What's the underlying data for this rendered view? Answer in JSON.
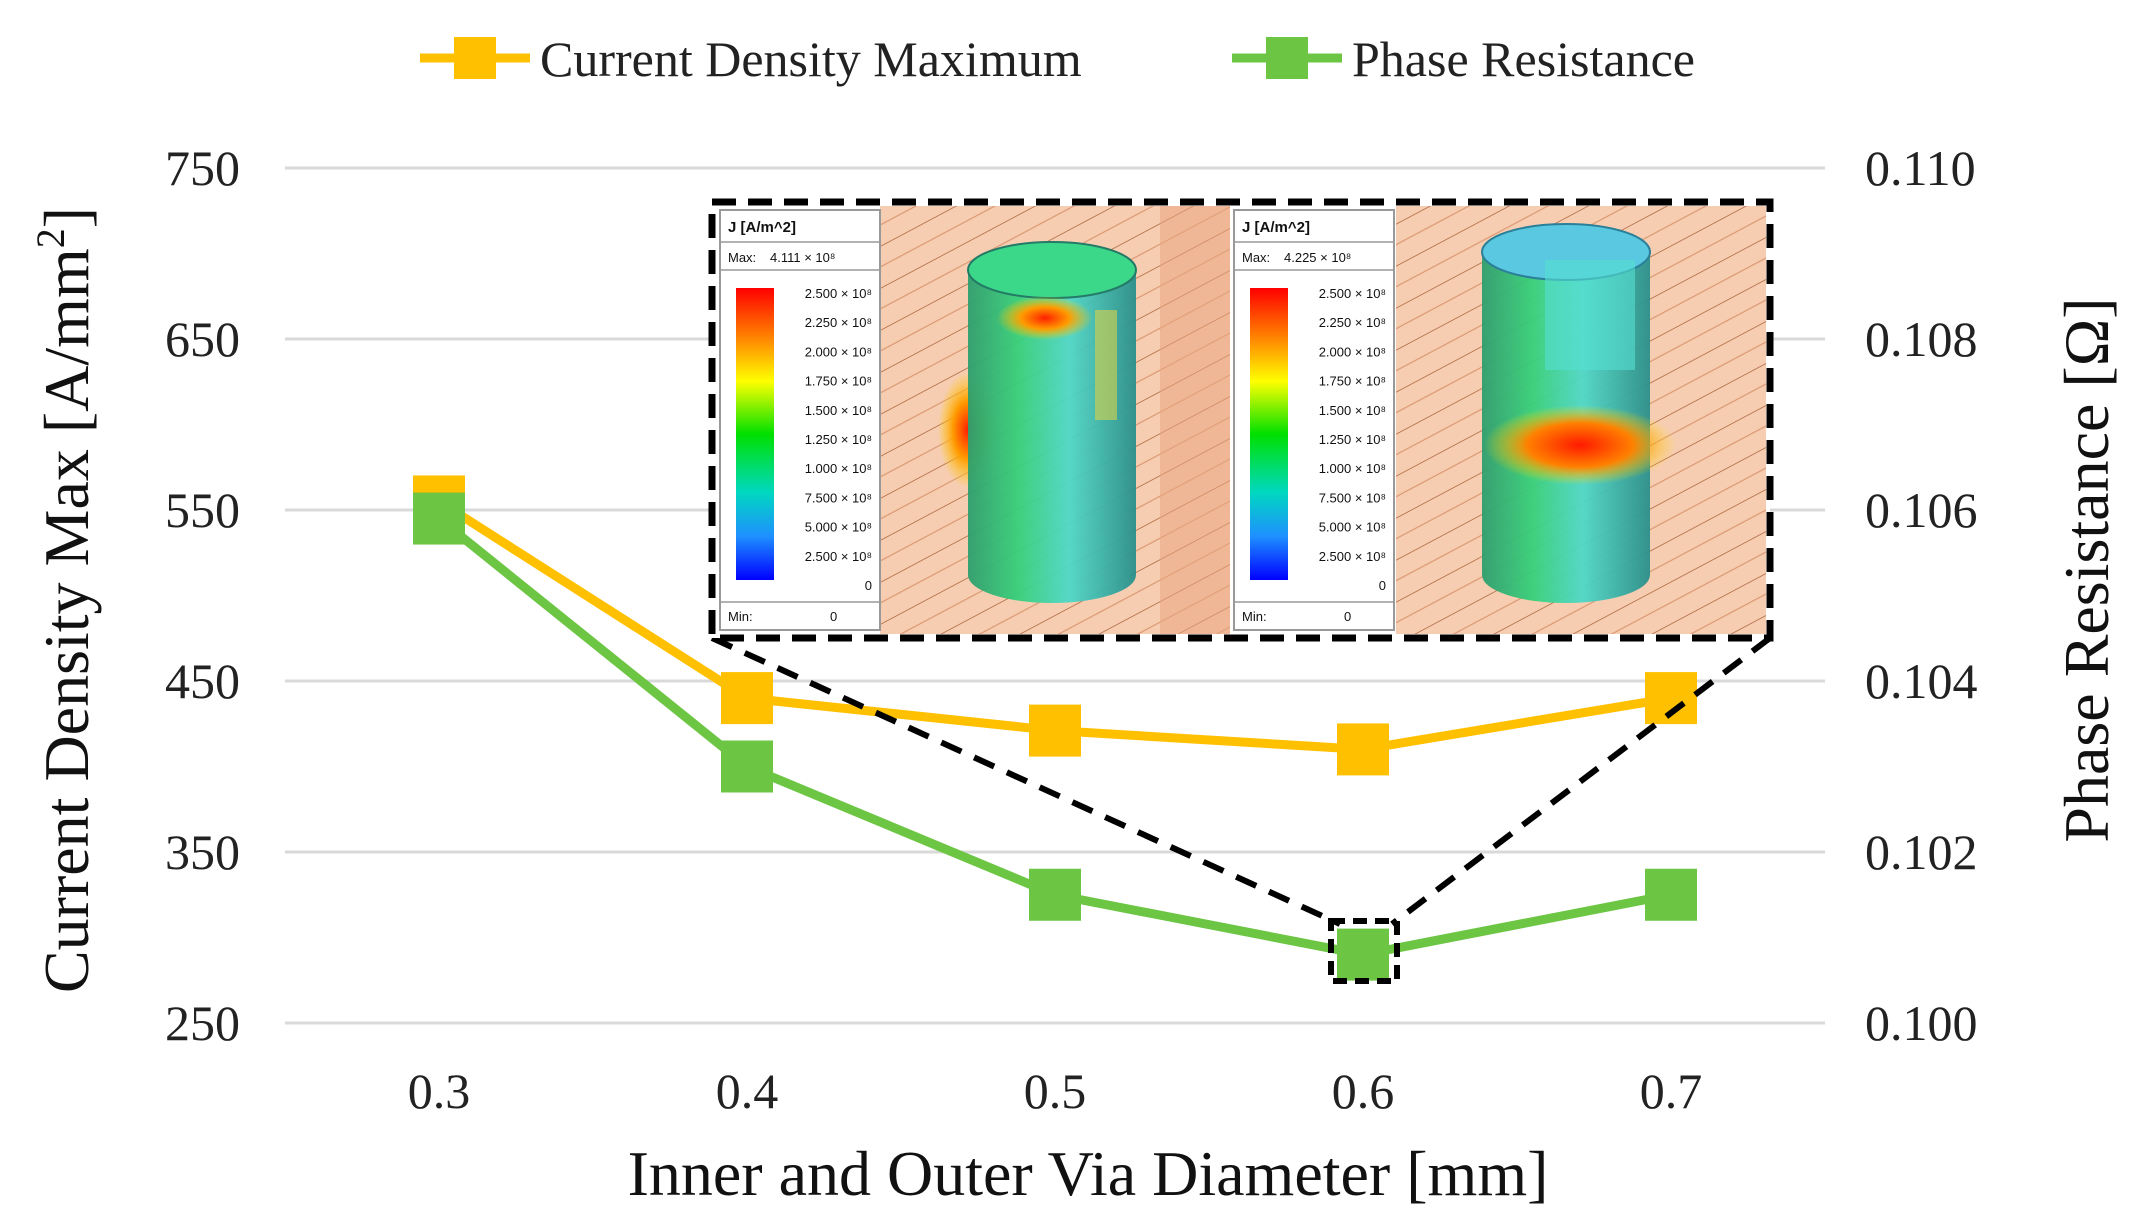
{
  "chart_data": {
    "type": "line",
    "categories": [
      "0.3",
      "0.4",
      "0.5",
      "0.6",
      "0.7"
    ],
    "xlabel": "Inner and Outer Via Diameter [mm]",
    "ylabel": "Current Density Max [A/mm",
    "ylabel_sup": "2",
    "ylabel_end": "]",
    "y2label": "Phase Resistance [Ω]",
    "ylim": [
      250,
      750
    ],
    "y_ticks": [
      "250",
      "350",
      "450",
      "550",
      "650",
      "750"
    ],
    "y2lim": [
      0.1,
      0.11
    ],
    "y2_ticks": [
      "0.100",
      "0.102",
      "0.104",
      "0.106",
      "0.108",
      "0.110"
    ],
    "grid": true,
    "legend_position": "top-center",
    "series": [
      {
        "name": "Current Density Maximum",
        "axis": "left",
        "color": "#FFC000",
        "values": [
          555,
          440,
          421,
          410,
          440
        ]
      },
      {
        "name": "Phase Resistance",
        "axis": "right",
        "color": "#6CC644",
        "values": [
          0.1059,
          0.103,
          0.1015,
          0.1008,
          0.1015
        ]
      }
    ],
    "highlight_category": "0.6",
    "inset": {
      "panels": [
        {
          "header": "J [A/m^2]",
          "max_label": "Max:",
          "max_value": "4.111 × 10⁸",
          "scale": [
            "2.500 × 10⁸",
            "2.250 × 10⁸",
            "2.000 × 10⁸",
            "1.750 × 10⁸",
            "1.500 × 10⁸",
            "1.250 × 10⁸",
            "1.000 × 10⁸",
            "7.500 × 10⁸",
            "5.000 × 10⁸",
            "2.500 × 10⁸",
            "0"
          ],
          "min_label": "Min:",
          "min_value": "0"
        },
        {
          "header": "J [A/m^2]",
          "max_label": "Max:",
          "max_value": "4.225 × 10⁸",
          "scale": [
            "2.500 × 10⁸",
            "2.250 × 10⁸",
            "2.000 × 10⁸",
            "1.750 × 10⁸",
            "1.500 × 10⁸",
            "1.250 × 10⁸",
            "1.000 × 10⁸",
            "7.500 × 10⁸",
            "5.000 × 10⁸",
            "2.500 × 10⁸",
            "0"
          ],
          "min_label": "Min:",
          "min_value": "0"
        }
      ]
    }
  },
  "colors": {
    "grid": "#D9D9D9",
    "orange": "#FFC000",
    "green": "#6CC644",
    "copper": "#F4C4A4",
    "copper_dark": "#C9805A"
  }
}
